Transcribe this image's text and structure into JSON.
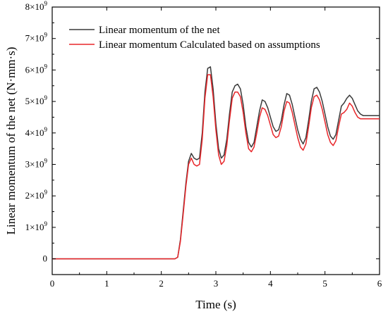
{
  "chart_data": {
    "type": "line",
    "xlabel": "Time (s)",
    "ylabel": "Linear momentum of the net (N·mm·s)",
    "xlim": [
      0,
      6
    ],
    "ylim": [
      -0.5,
      8
    ],
    "y_scale_label": "×10^9",
    "grid": false,
    "legend_position": "top-left",
    "x_ticks": [
      0,
      1,
      2,
      3,
      4,
      5,
      6
    ],
    "y_ticks": [
      {
        "value": 0,
        "base": "0",
        "exp": ""
      },
      {
        "value": 1,
        "base": "1×10",
        "exp": "9"
      },
      {
        "value": 2,
        "base": "2×10",
        "exp": "9"
      },
      {
        "value": 3,
        "base": "3×10",
        "exp": "9"
      },
      {
        "value": 4,
        "base": "4×10",
        "exp": "9"
      },
      {
        "value": 5,
        "base": "5×10",
        "exp": "9"
      },
      {
        "value": 6,
        "base": "6×10",
        "exp": "9"
      },
      {
        "value": 7,
        "base": "7×10",
        "exp": "9"
      },
      {
        "value": 8,
        "base": "8×10",
        "exp": "9"
      }
    ],
    "series": [
      {
        "name": "Linear momentum of the net",
        "color": "#3a3a3a",
        "x": [
          0,
          2.25,
          2.3,
          2.35,
          2.4,
          2.45,
          2.5,
          2.55,
          2.6,
          2.65,
          2.7,
          2.75,
          2.8,
          2.85,
          2.9,
          2.95,
          3.0,
          3.05,
          3.1,
          3.15,
          3.2,
          3.25,
          3.3,
          3.35,
          3.4,
          3.45,
          3.5,
          3.55,
          3.6,
          3.65,
          3.7,
          3.75,
          3.8,
          3.85,
          3.9,
          3.95,
          4.0,
          4.05,
          4.1,
          4.15,
          4.2,
          4.25,
          4.3,
          4.35,
          4.4,
          4.45,
          4.5,
          4.55,
          4.6,
          4.65,
          4.7,
          4.75,
          4.8,
          4.85,
          4.9,
          4.95,
          5.0,
          5.05,
          5.1,
          5.15,
          5.2,
          5.25,
          5.3,
          5.35,
          5.4,
          5.45,
          5.5,
          5.55,
          5.6,
          5.65,
          5.7,
          5.75,
          5.8,
          5.85,
          5.9,
          5.95,
          6.0
        ],
        "y": [
          0,
          0,
          0.05,
          0.6,
          1.5,
          2.4,
          3.1,
          3.35,
          3.2,
          3.15,
          3.2,
          4.0,
          5.3,
          6.05,
          6.1,
          5.4,
          4.3,
          3.5,
          3.2,
          3.3,
          3.8,
          4.6,
          5.3,
          5.5,
          5.55,
          5.4,
          4.9,
          4.2,
          3.7,
          3.55,
          3.7,
          4.2,
          4.7,
          5.05,
          5.0,
          4.8,
          4.5,
          4.2,
          4.05,
          4.1,
          4.4,
          4.9,
          5.25,
          5.2,
          4.9,
          4.5,
          4.1,
          3.8,
          3.65,
          3.85,
          4.4,
          5.0,
          5.4,
          5.45,
          5.3,
          5.0,
          4.6,
          4.2,
          3.9,
          3.8,
          3.95,
          4.4,
          4.85,
          4.95,
          5.1,
          5.2,
          5.1,
          4.9,
          4.7,
          4.6,
          4.55,
          4.55,
          4.55,
          4.55,
          4.55,
          4.55,
          4.55
        ]
      },
      {
        "name": "Linear momentum Calculated based on assumptions",
        "color": "#e8262a",
        "x": [
          0,
          2.25,
          2.3,
          2.35,
          2.4,
          2.45,
          2.5,
          2.55,
          2.6,
          2.65,
          2.7,
          2.75,
          2.8,
          2.85,
          2.9,
          2.95,
          3.0,
          3.05,
          3.1,
          3.15,
          3.2,
          3.25,
          3.3,
          3.35,
          3.4,
          3.45,
          3.5,
          3.55,
          3.6,
          3.65,
          3.7,
          3.75,
          3.8,
          3.85,
          3.9,
          3.95,
          4.0,
          4.05,
          4.1,
          4.15,
          4.2,
          4.25,
          4.3,
          4.35,
          4.4,
          4.45,
          4.5,
          4.55,
          4.6,
          4.65,
          4.7,
          4.75,
          4.8,
          4.85,
          4.9,
          4.95,
          5.0,
          5.05,
          5.1,
          5.15,
          5.2,
          5.25,
          5.3,
          5.35,
          5.4,
          5.45,
          5.5,
          5.55,
          5.6,
          5.65,
          5.7,
          5.75,
          5.8,
          5.85,
          5.9,
          5.95,
          6.0
        ],
        "y": [
          0,
          0,
          0.05,
          0.55,
          1.4,
          2.3,
          3.0,
          3.2,
          3.0,
          2.95,
          3.0,
          3.8,
          5.1,
          5.85,
          5.85,
          5.15,
          4.1,
          3.3,
          3.0,
          3.1,
          3.6,
          4.4,
          5.1,
          5.3,
          5.3,
          5.15,
          4.65,
          4.0,
          3.5,
          3.4,
          3.55,
          4.0,
          4.5,
          4.8,
          4.75,
          4.55,
          4.25,
          3.95,
          3.85,
          3.9,
          4.2,
          4.7,
          5.0,
          4.95,
          4.65,
          4.25,
          3.85,
          3.55,
          3.45,
          3.65,
          4.2,
          4.8,
          5.15,
          5.2,
          5.05,
          4.75,
          4.35,
          3.95,
          3.7,
          3.6,
          3.75,
          4.2,
          4.6,
          4.65,
          4.75,
          4.95,
          4.85,
          4.65,
          4.5,
          4.45,
          4.45,
          4.45,
          4.45,
          4.45,
          4.45,
          4.45,
          4.45
        ]
      }
    ]
  }
}
